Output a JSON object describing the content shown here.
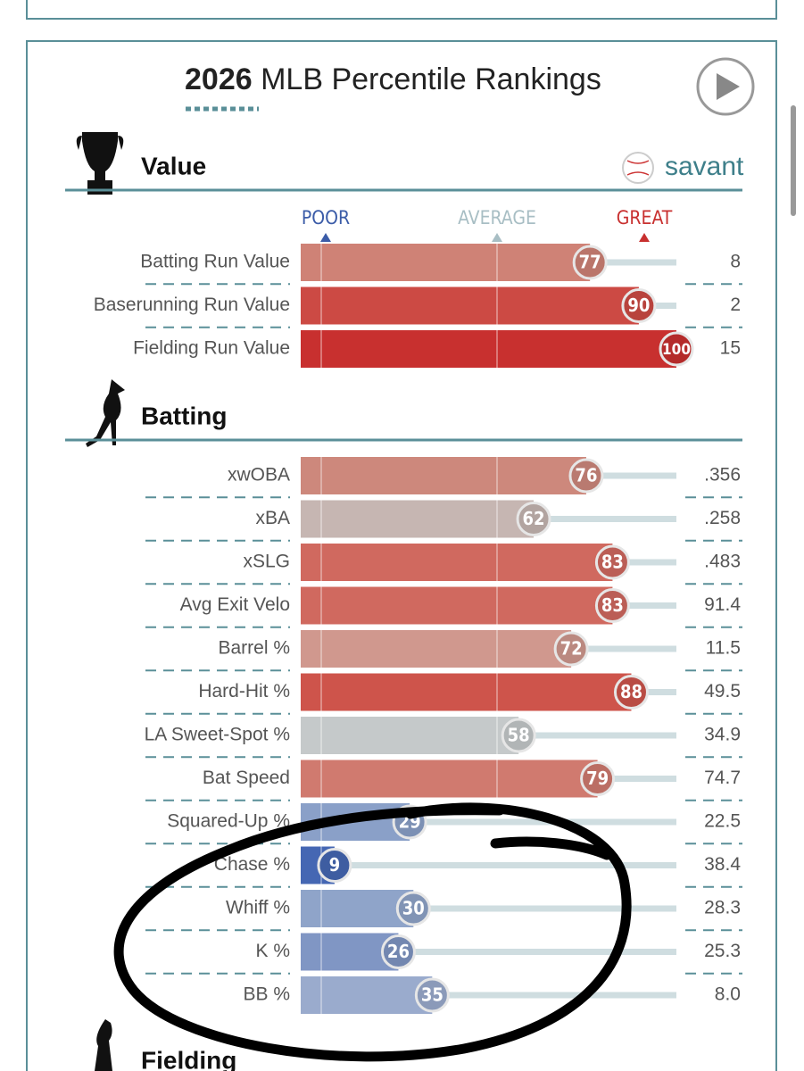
{
  "header": {
    "year": "2026",
    "title": "MLB Percentile Rankings"
  },
  "brand": "savant",
  "legend": {
    "poor": "POOR",
    "average": "AVERAGE",
    "great": "GREAT"
  },
  "xlim": [
    0,
    100
  ],
  "sections": [
    {
      "title": "Value",
      "rows": [
        {
          "label": "Batting Run Value",
          "percentile": 77,
          "value": "8",
          "color": "#cf8276"
        },
        {
          "label": "Baserunning Run Value",
          "percentile": 90,
          "value": "2",
          "color": "#cc4a44"
        },
        {
          "label": "Fielding Run Value",
          "percentile": 100,
          "value": "15",
          "color": "#c8302f"
        }
      ]
    },
    {
      "title": "Batting",
      "rows": [
        {
          "label": "xwOBA",
          "percentile": 76,
          "value": ".356",
          "color": "#cd887c"
        },
        {
          "label": "xBA",
          "percentile": 62,
          "value": ".258",
          "color": "#c6b6b2"
        },
        {
          "label": "xSLG",
          "percentile": 83,
          "value": ".483",
          "color": "#d0695f"
        },
        {
          "label": "Avg Exit Velo",
          "percentile": 83,
          "value": "91.4",
          "color": "#d0695f"
        },
        {
          "label": "Barrel %",
          "percentile": 72,
          "value": "11.5",
          "color": "#d0988e"
        },
        {
          "label": "Hard-Hit %",
          "percentile": 88,
          "value": "49.5",
          "color": "#ce544b"
        },
        {
          "label": "LA Sweet-Spot %",
          "percentile": 58,
          "value": "34.9",
          "color": "#c5c9ca"
        },
        {
          "label": "Bat Speed",
          "percentile": 79,
          "value": "74.7",
          "color": "#d07a6f"
        },
        {
          "label": "Squared-Up %",
          "percentile": 29,
          "value": "22.5",
          "color": "#8aa0c8"
        },
        {
          "label": "Chase %",
          "percentile": 9,
          "value": "38.4",
          "color": "#4567b3"
        },
        {
          "label": "Whiff %",
          "percentile": 30,
          "value": "28.3",
          "color": "#8fa4c9"
        },
        {
          "label": "K %",
          "percentile": 26,
          "value": "25.3",
          "color": "#8096c4"
        },
        {
          "label": "BB %",
          "percentile": 35,
          "value": "8.0",
          "color": "#9aabcd"
        }
      ]
    },
    {
      "title": "Fielding",
      "rows": []
    }
  ]
}
